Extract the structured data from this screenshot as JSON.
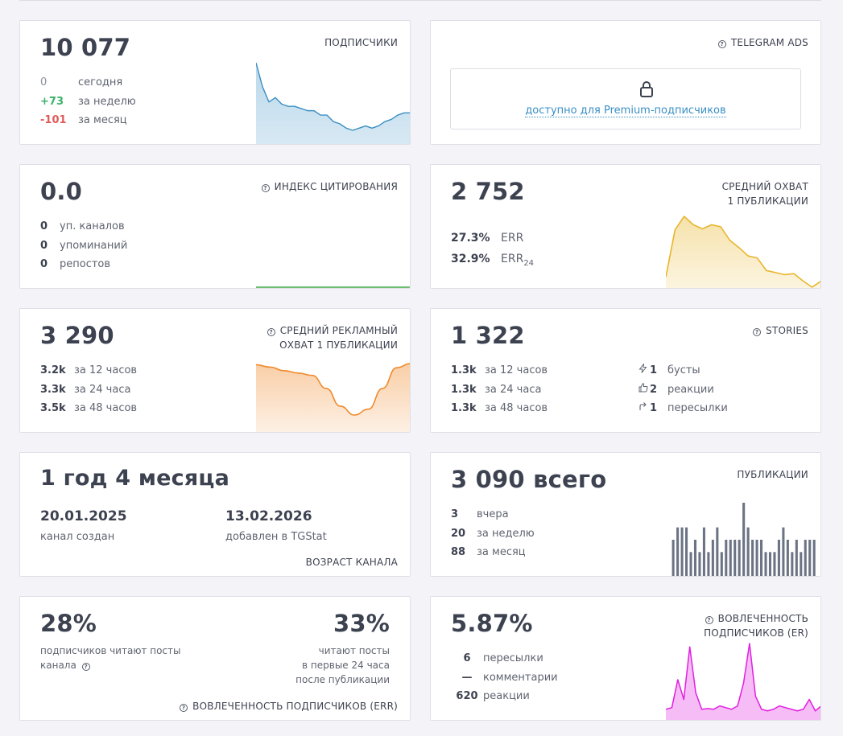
{
  "subscribers": {
    "value": "10 077",
    "title": "ПОДПИСЧИКИ",
    "rows": [
      {
        "value": "0",
        "label": "сегодня"
      },
      {
        "value": "+73",
        "label": "за неделю"
      },
      {
        "value": "-101",
        "label": "за месяц"
      }
    ]
  },
  "telegram_ads": {
    "title": "TELEGRAM ADS",
    "locked_text": "доступно для Premium-подписчиков"
  },
  "citation": {
    "value": "0.0",
    "title": "ИНДЕКС ЦИТИРОВАНИЯ",
    "rows": [
      {
        "value": "0",
        "label": "уп. каналов"
      },
      {
        "value": "0",
        "label": "упоминаний"
      },
      {
        "value": "0",
        "label": "репостов"
      }
    ]
  },
  "avg_reach": {
    "value": "2 752",
    "title_line1": "СРЕДНИЙ ОХВАТ",
    "title_line2": "1 ПУБЛИКАЦИИ",
    "rows": [
      {
        "value": "27.3%",
        "label": "ERR",
        "sub": ""
      },
      {
        "value": "32.9%",
        "label": "ERR",
        "sub": "24"
      }
    ]
  },
  "ad_reach": {
    "value": "3 290",
    "title_line1": "СРЕДНИЙ РЕКЛАМНЫЙ",
    "title_line2": "ОХВАТ 1 ПУБЛИКАЦИИ",
    "rows": [
      {
        "value": "3.2k",
        "label": "за 12 часов"
      },
      {
        "value": "3.3k",
        "label": "за 24 часа"
      },
      {
        "value": "3.5k",
        "label": "за 48 часов"
      }
    ]
  },
  "stories": {
    "value": "1 322",
    "title": "STORIES",
    "rows": [
      {
        "value": "1.3k",
        "label": "за 12 часов"
      },
      {
        "value": "1.3k",
        "label": "за 24 часа"
      },
      {
        "value": "1.3k",
        "label": "за 48 часов"
      }
    ],
    "right_rows": [
      {
        "icon": "boost-icon",
        "value": "1",
        "label": "бусты"
      },
      {
        "icon": "thumb-icon",
        "value": "2",
        "label": "реакции"
      },
      {
        "icon": "forward-icon",
        "value": "1",
        "label": "пересылки"
      }
    ]
  },
  "age": {
    "value": "1 год 4 месяца",
    "created_date": "20.01.2025",
    "created_label": "канал создан",
    "added_date": "13.02.2026",
    "added_label": "добавлен в TGStat",
    "title": "ВОЗРАСТ КАНАЛА"
  },
  "posts": {
    "value": "3 090 всего",
    "title": "ПУБЛИКАЦИИ",
    "rows": [
      {
        "value": "3",
        "label": "вчера"
      },
      {
        "value": "20",
        "label": "за неделю"
      },
      {
        "value": "88",
        "label": "за месяц"
      }
    ]
  },
  "err": {
    "left_value": "28%",
    "left_line1": "подписчиков читают посты",
    "left_line2": "канала",
    "right_value": "33%",
    "right_line1": "читают посты",
    "right_line2": "в первые 24 часа",
    "right_line3": "после публикации",
    "title": "ВОВЛЕЧЕННОСТЬ ПОДПИСЧИКОВ (ERR)"
  },
  "er": {
    "value": "5.87%",
    "title_line1": "ВОВЛЕЧЕННОСТЬ",
    "title_line2": "ПОДПИСЧИКОВ (ER)",
    "rows": [
      {
        "value": "6",
        "label": "пересылки"
      },
      {
        "value": "—",
        "label": "комментарии"
      },
      {
        "value": "620",
        "label": "реакции"
      }
    ]
  },
  "colors": {
    "subscribers": "#3a8fc4",
    "citation": "#4caf50",
    "avg_reach": "#e8b62c",
    "ad_reach": "#f08a2c",
    "posts": "#6b7384",
    "er": "#e020e0"
  },
  "chart_data": [
    {
      "type": "area",
      "title": "ПОДПИСЧИКИ",
      "values": [
        10100,
        10089,
        10082,
        10084,
        10081,
        10080,
        10080,
        10079,
        10078,
        10078,
        10076,
        10076,
        10073,
        10072,
        10070,
        10069,
        10070,
        10071,
        10070,
        10071,
        10073,
        10074,
        10076,
        10077,
        10077
      ]
    },
    {
      "type": "area",
      "title": "ИНДЕКС ЦИТИРОВАНИЯ",
      "values": [
        0,
        0,
        0,
        0,
        0,
        0,
        0,
        0
      ]
    },
    {
      "type": "area",
      "title": "СРЕДНИЙ ОХВАТ 1 ПУБЛИКАЦИИ",
      "values": [
        2800,
        3250,
        3380,
        3300,
        3260,
        3300,
        3280,
        3150,
        3080,
        3000,
        2980,
        2860,
        2840,
        2820,
        2830,
        2760,
        2700,
        2760
      ]
    },
    {
      "type": "area",
      "title": "СРЕДНИЙ РЕКЛАМНЫЙ ОХВАТ 1 ПУБЛИКАЦИИ",
      "values": [
        3.6,
        3.56,
        3.5,
        3.46,
        3.42,
        3.2,
        2.9,
        2.75,
        2.85,
        3.2,
        3.55,
        3.62
      ]
    },
    {
      "type": "bar",
      "title": "ПУБЛИКАЦИИ",
      "values": [
        3,
        4,
        4,
        4,
        2,
        3,
        2,
        4,
        2,
        3,
        4,
        2,
        3,
        3,
        3,
        3,
        6,
        4,
        3,
        3,
        3,
        2,
        2,
        2,
        3,
        4,
        3,
        2,
        3,
        2,
        3,
        3,
        3,
        0
      ]
    },
    {
      "type": "area",
      "title": "ВОВЛЕЧЕННОСТЬ ПОДПИСЧИКОВ (ER)",
      "values": [
        3,
        3.5,
        12,
        6,
        22,
        8,
        3,
        3.2,
        3,
        4,
        3.5,
        3,
        4,
        11,
        23,
        7,
        3,
        2.5,
        3,
        4,
        3.5,
        3,
        2.5,
        3,
        6,
        2.5,
        4
      ]
    }
  ]
}
